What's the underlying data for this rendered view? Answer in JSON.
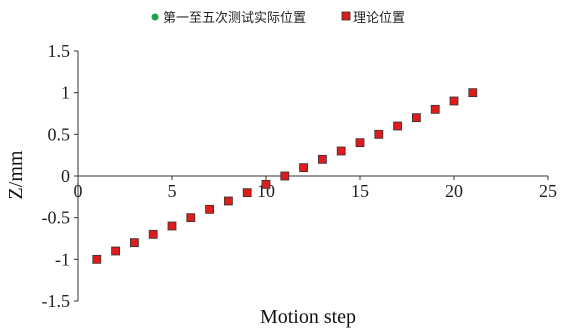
{
  "chart_data": {
    "type": "scatter",
    "title": "",
    "xlabel": "Motion step",
    "ylabel": "Z/mm",
    "xlim": [
      0,
      25
    ],
    "ylim": [
      -1.5,
      1.5
    ],
    "xticks": [
      0,
      5,
      10,
      15,
      20,
      25
    ],
    "yticks": [
      1.5,
      1,
      0.5,
      0,
      -0.5,
      -1,
      -1.5
    ],
    "xtick_labels": [
      "0",
      "5",
      "10",
      "15",
      "20",
      "25"
    ],
    "ytick_labels": [
      "1.5",
      "1",
      "0.5",
      "0",
      "-0.5",
      "-1",
      "-1.5"
    ],
    "grid": false,
    "legend_position": "top",
    "series": [
      {
        "name": "第一至五次测试实际位置",
        "marker": "circle",
        "color": "#1aa34a",
        "x": [
          1,
          2,
          3,
          4,
          5,
          6,
          7,
          8,
          9,
          10,
          11,
          12,
          13,
          14,
          15,
          16,
          17,
          18,
          19,
          20,
          21
        ],
        "y": [
          -1,
          -0.9,
          -0.8,
          -0.7,
          -0.6,
          -0.5,
          -0.4,
          -0.3,
          -0.2,
          -0.1,
          0,
          0.1,
          0.2,
          0.3,
          0.4,
          0.5,
          0.6,
          0.7,
          0.8,
          0.9,
          1
        ]
      },
      {
        "name": "理论位置",
        "marker": "square",
        "color": "#e01b1b",
        "x": [
          1,
          2,
          3,
          4,
          5,
          6,
          7,
          8,
          9,
          10,
          11,
          12,
          13,
          14,
          15,
          16,
          17,
          18,
          19,
          20,
          21
        ],
        "y": [
          -1,
          -0.9,
          -0.8,
          -0.7,
          -0.6,
          -0.5,
          -0.4,
          -0.3,
          -0.2,
          -0.1,
          0,
          0.1,
          0.2,
          0.3,
          0.4,
          0.5,
          0.6,
          0.7,
          0.8,
          0.9,
          1
        ]
      }
    ]
  }
}
